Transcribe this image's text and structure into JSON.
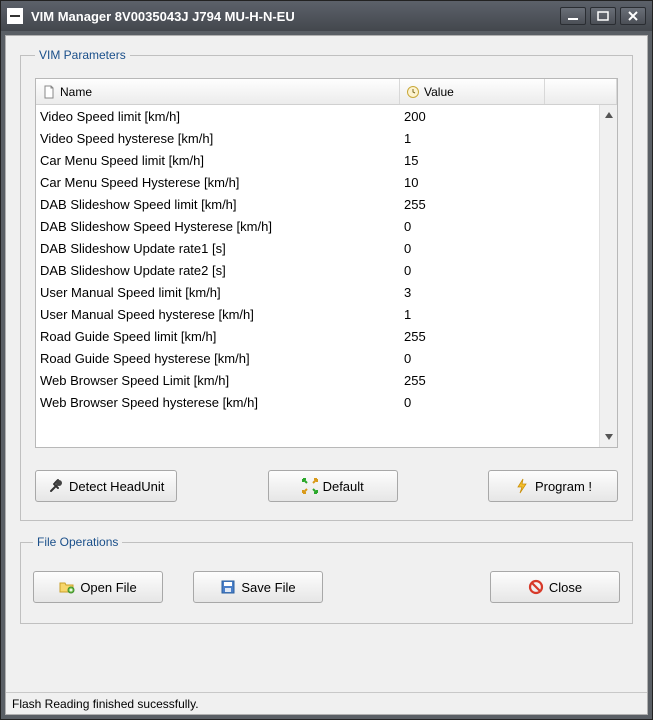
{
  "window": {
    "title": "VIM Manager 8V0035043J  J794  MU-H-N-EU"
  },
  "vim_group": {
    "legend": "VIM Parameters",
    "columns": {
      "name": "Name",
      "value": "Value"
    },
    "rows": [
      {
        "name": "Video Speed limit [km/h]",
        "value": "200"
      },
      {
        "name": "Video Speed hysterese [km/h]",
        "value": "1"
      },
      {
        "name": "Car Menu Speed limit [km/h]",
        "value": "15"
      },
      {
        "name": "Car Menu Speed Hysterese [km/h]",
        "value": "10"
      },
      {
        "name": "DAB Slideshow Speed limit [km/h]",
        "value": "255"
      },
      {
        "name": "DAB Slideshow Speed Hysterese [km/h]",
        "value": "0"
      },
      {
        "name": "DAB Slideshow Update rate1 [s]",
        "value": "0"
      },
      {
        "name": "DAB Slideshow Update rate2 [s]",
        "value": "0"
      },
      {
        "name": "User Manual Speed limit [km/h]",
        "value": "3"
      },
      {
        "name": "User Manual Speed hysterese [km/h]",
        "value": "1"
      },
      {
        "name": "Road Guide Speed limit [km/h]",
        "value": "255"
      },
      {
        "name": "Road Guide Speed hysterese [km/h]",
        "value": "0"
      },
      {
        "name": "Web Browser Speed Limit [km/h]",
        "value": "255"
      },
      {
        "name": "Web Browser Speed hysterese [km/h]",
        "value": "0"
      }
    ],
    "buttons": {
      "detect": "Detect HeadUnit",
      "default": "Default",
      "program": "Program !"
    }
  },
  "file_group": {
    "legend": "File Operations",
    "buttons": {
      "open": "Open File",
      "save": "Save File",
      "close": "Close"
    }
  },
  "status": "Flash Reading finished sucessfully.",
  "colors": {
    "titlebar_text": "#ffffff",
    "legend_text": "#1a4f8a",
    "client_bg": "#f0f0f0",
    "border": "#b8b8b8"
  }
}
